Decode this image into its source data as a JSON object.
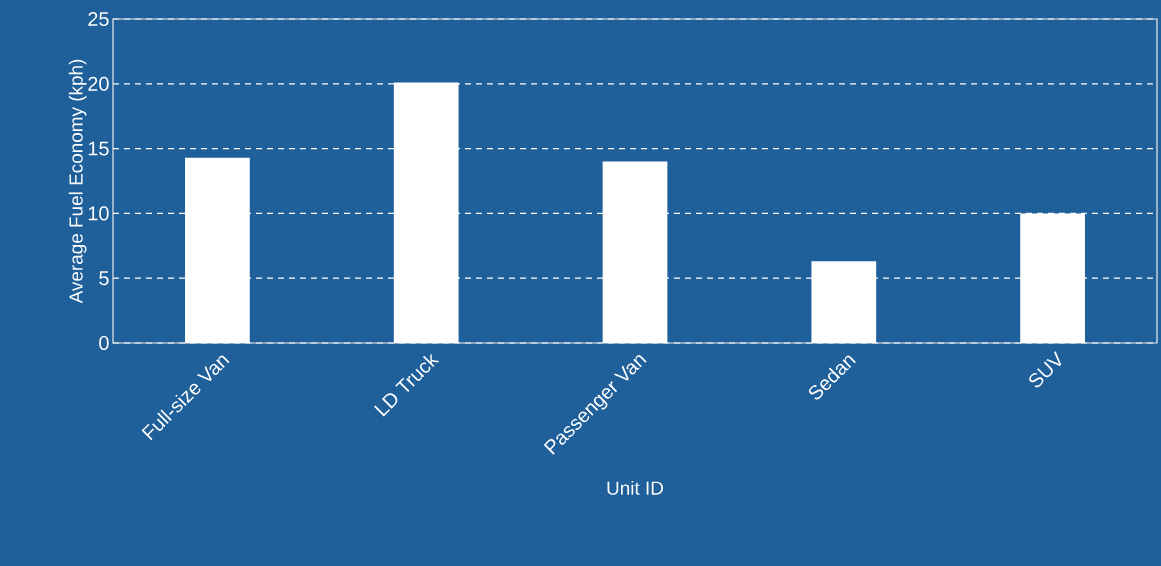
{
  "chart_data": {
    "type": "bar",
    "xlabel": "Unit ID",
    "ylabel": "Average Fuel Economy (kph)",
    "categories": [
      "Full-size Van",
      "LD Truck",
      "Passenger Van",
      "Sedan",
      "SUV"
    ],
    "values": [
      14.3,
      20.1,
      14.0,
      6.3,
      10.0
    ],
    "color": "#ffffff",
    "ylim": [
      0,
      25
    ],
    "yticks": [
      0,
      5,
      10,
      15,
      20,
      25
    ],
    "grid": "y"
  }
}
